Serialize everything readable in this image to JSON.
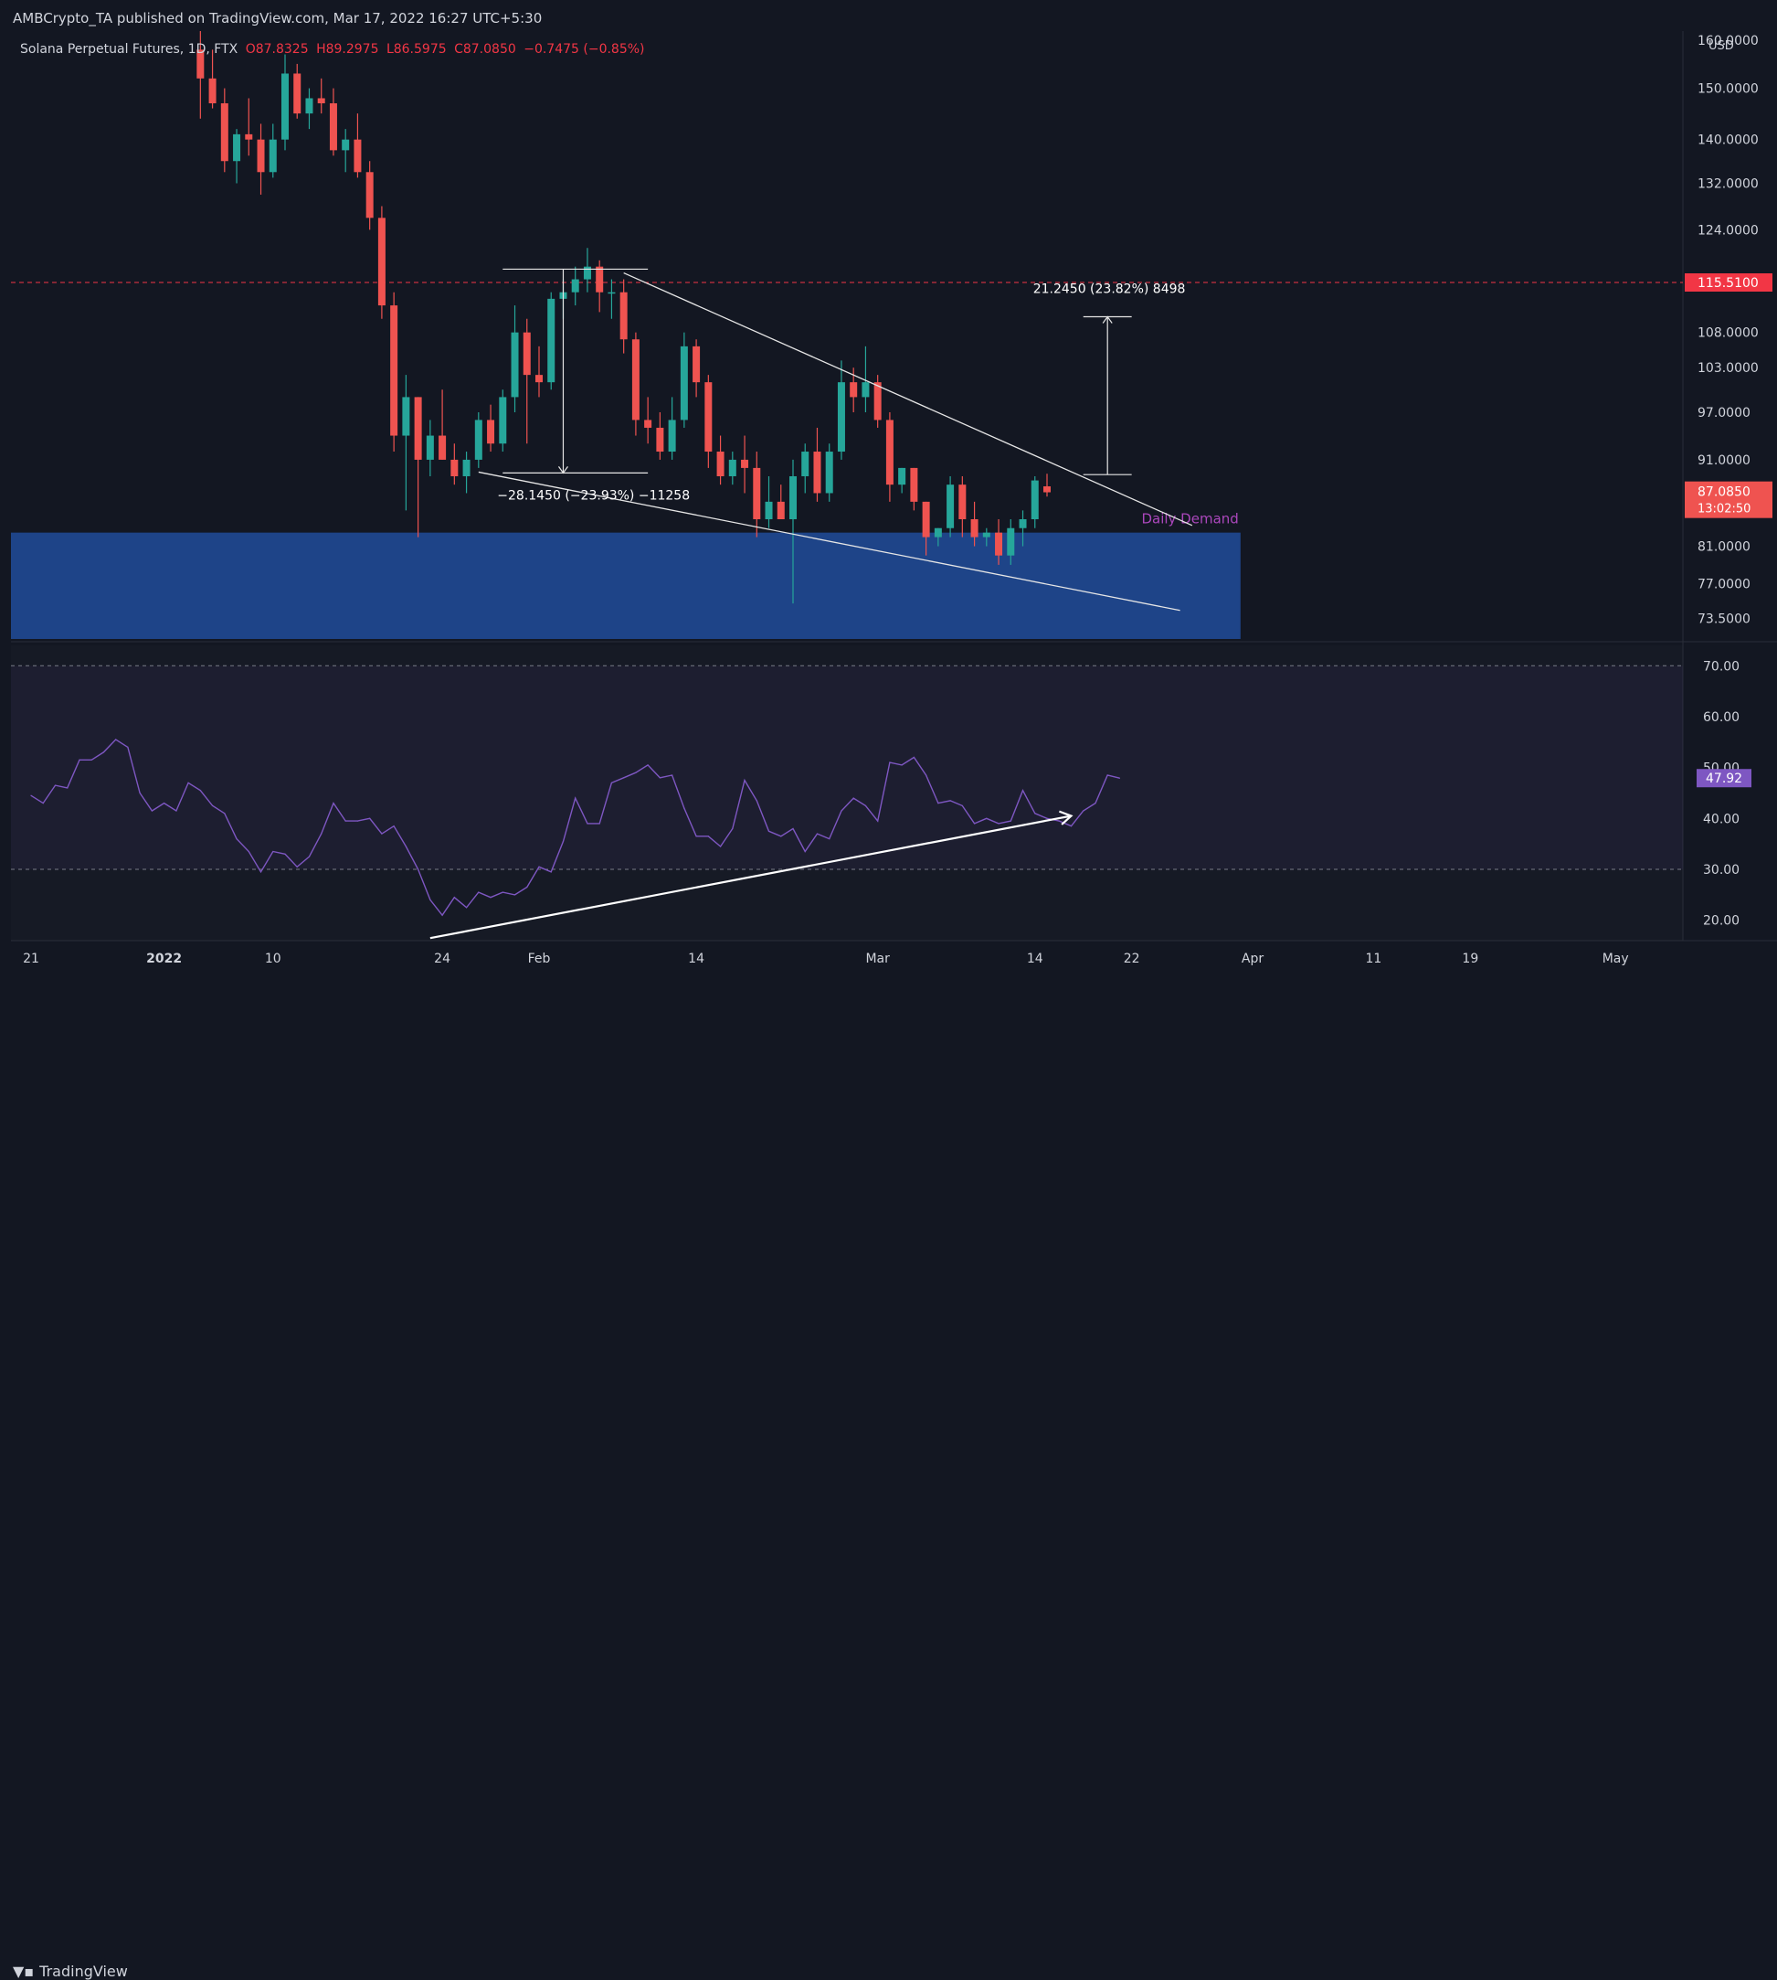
{
  "publisher_line": "AMBCrypto_TA published on TradingView.com, Mar 17, 2022 16:27 UTC+5:30",
  "legend": {
    "symbol": "Solana Perpetual Futures, 1D, FTX",
    "open": "O87.8325",
    "high": "H89.2975",
    "low": "L86.5975",
    "close": "C87.0850",
    "change": "−0.7475 (−0.85%)"
  },
  "currency": "USD",
  "footer_logo": "TradingView",
  "colors": {
    "background": "#131722",
    "up": "#26a69a",
    "down": "#ef5350",
    "demand_zone": "#1e4488",
    "rsi_line": "#7e57c2",
    "resistance": "#f23645"
  },
  "chart_data": [
    {
      "type": "candlestick",
      "x_axis_ticks": [
        "21",
        "2022",
        "10",
        "24",
        "Feb",
        "14",
        "Mar",
        "14",
        "22",
        "Apr",
        "11",
        "19",
        "May"
      ],
      "y_axis_ticks": [
        "160.0000",
        "150.0000",
        "140.0000",
        "132.0000",
        "124.0000",
        "108.0000",
        "103.0000",
        "97.0000",
        "91.0000",
        "81.0000",
        "77.0000",
        "73.5000"
      ],
      "ylim": [
        71.5,
        162
      ],
      "scale": "log",
      "last_price_label": "87.0850",
      "countdown_label": "13:02:50",
      "resistance_level": 115.51,
      "resistance_label": "115.5100",
      "demand_zone": {
        "from": 71.5,
        "to": 82.5,
        "label": "Daily Demand"
      },
      "measure_down_label": "−28.1450 (−23.93%) −11258",
      "measure_up_label": "21.2450 (23.82%) 8498",
      "candles": [
        {
          "o": 158,
          "h": 162,
          "l": 144,
          "c": 152
        },
        {
          "o": 152,
          "h": 158,
          "l": 146,
          "c": 147
        },
        {
          "o": 147,
          "h": 150,
          "l": 134,
          "c": 136
        },
        {
          "o": 136,
          "h": 142,
          "l": 132,
          "c": 141
        },
        {
          "o": 141,
          "h": 148,
          "l": 137,
          "c": 140
        },
        {
          "o": 140,
          "h": 143,
          "l": 130,
          "c": 134
        },
        {
          "o": 134,
          "h": 143,
          "l": 133,
          "c": 140
        },
        {
          "o": 140,
          "h": 157,
          "l": 138,
          "c": 153
        },
        {
          "o": 153,
          "h": 155,
          "l": 144,
          "c": 145
        },
        {
          "o": 145,
          "h": 150,
          "l": 142,
          "c": 148
        },
        {
          "o": 148,
          "h": 152,
          "l": 145,
          "c": 147
        },
        {
          "o": 147,
          "h": 150,
          "l": 137,
          "c": 138
        },
        {
          "o": 138,
          "h": 142,
          "l": 134,
          "c": 140
        },
        {
          "o": 140,
          "h": 145,
          "l": 133,
          "c": 134
        },
        {
          "o": 134,
          "h": 136,
          "l": 124,
          "c": 126
        },
        {
          "o": 126,
          "h": 128,
          "l": 110,
          "c": 112
        },
        {
          "o": 112,
          "h": 114,
          "l": 92,
          "c": 94
        },
        {
          "o": 94,
          "h": 102,
          "l": 85,
          "c": 99
        },
        {
          "o": 99,
          "h": 99,
          "l": 82,
          "c": 91
        },
        {
          "o": 91,
          "h": 96,
          "l": 89,
          "c": 94
        },
        {
          "o": 94,
          "h": 100,
          "l": 91,
          "c": 91
        },
        {
          "o": 91,
          "h": 93,
          "l": 88,
          "c": 89
        },
        {
          "o": 89,
          "h": 92,
          "l": 87,
          "c": 91
        },
        {
          "o": 91,
          "h": 97,
          "l": 90,
          "c": 96
        },
        {
          "o": 96,
          "h": 98,
          "l": 92,
          "c": 93
        },
        {
          "o": 93,
          "h": 100,
          "l": 92,
          "c": 99
        },
        {
          "o": 99,
          "h": 112,
          "l": 97,
          "c": 108
        },
        {
          "o": 108,
          "h": 110,
          "l": 93,
          "c": 102
        },
        {
          "o": 102,
          "h": 106,
          "l": 99,
          "c": 101
        },
        {
          "o": 101,
          "h": 114,
          "l": 100,
          "c": 113
        },
        {
          "o": 113,
          "h": 116,
          "l": 110,
          "c": 114
        },
        {
          "o": 114,
          "h": 118,
          "l": 112,
          "c": 116
        },
        {
          "o": 116,
          "h": 121,
          "l": 114,
          "c": 118
        },
        {
          "o": 118,
          "h": 119,
          "l": 111,
          "c": 114
        },
        {
          "o": 114,
          "h": 116,
          "l": 110,
          "c": 114
        },
        {
          "o": 114,
          "h": 116,
          "l": 105,
          "c": 107
        },
        {
          "o": 107,
          "h": 108,
          "l": 94,
          "c": 96
        },
        {
          "o": 96,
          "h": 99,
          "l": 93,
          "c": 95
        },
        {
          "o": 95,
          "h": 97,
          "l": 91,
          "c": 92
        },
        {
          "o": 92,
          "h": 99,
          "l": 91,
          "c": 96
        },
        {
          "o": 96,
          "h": 108,
          "l": 95,
          "c": 106
        },
        {
          "o": 106,
          "h": 107,
          "l": 99,
          "c": 101
        },
        {
          "o": 101,
          "h": 102,
          "l": 90,
          "c": 92
        },
        {
          "o": 92,
          "h": 94,
          "l": 88,
          "c": 89
        },
        {
          "o": 89,
          "h": 92,
          "l": 88,
          "c": 91
        },
        {
          "o": 91,
          "h": 94,
          "l": 87,
          "c": 90
        },
        {
          "o": 90,
          "h": 92,
          "l": 82,
          "c": 84
        },
        {
          "o": 84,
          "h": 89,
          "l": 83,
          "c": 86
        },
        {
          "o": 86,
          "h": 88,
          "l": 84,
          "c": 84
        },
        {
          "o": 84,
          "h": 91,
          "l": 75,
          "c": 89
        },
        {
          "o": 89,
          "h": 93,
          "l": 87,
          "c": 92
        },
        {
          "o": 92,
          "h": 95,
          "l": 86,
          "c": 87
        },
        {
          "o": 87,
          "h": 93,
          "l": 86,
          "c": 92
        },
        {
          "o": 92,
          "h": 104,
          "l": 91,
          "c": 101
        },
        {
          "o": 101,
          "h": 103,
          "l": 97,
          "c": 99
        },
        {
          "o": 99,
          "h": 106,
          "l": 97,
          "c": 101
        },
        {
          "o": 101,
          "h": 102,
          "l": 95,
          "c": 96
        },
        {
          "o": 96,
          "h": 97,
          "l": 86,
          "c": 88
        },
        {
          "o": 88,
          "h": 90,
          "l": 87,
          "c": 90
        },
        {
          "o": 90,
          "h": 90,
          "l": 85,
          "c": 86
        },
        {
          "o": 86,
          "h": 86,
          "l": 80,
          "c": 82
        },
        {
          "o": 82,
          "h": 83,
          "l": 81,
          "c": 83
        },
        {
          "o": 83,
          "h": 89,
          "l": 82,
          "c": 88
        },
        {
          "o": 88,
          "h": 89,
          "l": 82,
          "c": 84
        },
        {
          "o": 84,
          "h": 86,
          "l": 81,
          "c": 82
        },
        {
          "o": 82,
          "h": 83,
          "l": 81,
          "c": 82.5
        },
        {
          "o": 82.5,
          "h": 84,
          "l": 79,
          "c": 80
        },
        {
          "o": 80,
          "h": 84,
          "l": 79,
          "c": 83
        },
        {
          "o": 83,
          "h": 85,
          "l": 81,
          "c": 84
        },
        {
          "o": 84,
          "h": 89,
          "l": 83,
          "c": 88.5
        },
        {
          "o": 87.8,
          "h": 89.3,
          "l": 86.6,
          "c": 87.1
        }
      ]
    },
    {
      "type": "line",
      "name": "RSI",
      "y_axis_ticks": [
        "70.00",
        "60.00",
        "50.00",
        "40.00",
        "30.00",
        "20.00"
      ],
      "ylim": [
        16,
        74
      ],
      "bands": [
        30,
        70
      ],
      "last_value_label": "47.92",
      "values": [
        44.5,
        43,
        46.5,
        46,
        51.5,
        51.5,
        53,
        55.5,
        54,
        45,
        41.5,
        43,
        41.5,
        47,
        45.5,
        42.5,
        41,
        36,
        33.5,
        29.5,
        33.5,
        33,
        30.5,
        32.5,
        37,
        43,
        39.5,
        39.5,
        40,
        37,
        38.5,
        34.5,
        30,
        24,
        21,
        24.5,
        22.5,
        25.5,
        24.5,
        25.5,
        25,
        26.5,
        30.5,
        29.5,
        35.5,
        44,
        39,
        39,
        47,
        48,
        49,
        50.5,
        48,
        48.5,
        42,
        36.5,
        36.5,
        34.5,
        38,
        47.5,
        43.5,
        37.5,
        36.5,
        38,
        33.5,
        37,
        36,
        41.5,
        44,
        42.5,
        39.5,
        51,
        50.5,
        52,
        48.5,
        43,
        43.5,
        42.5,
        39,
        40,
        39,
        39.5,
        45.5,
        41,
        40,
        39.5,
        38.5,
        41.5,
        43,
        48.5,
        47.92
      ]
    }
  ]
}
